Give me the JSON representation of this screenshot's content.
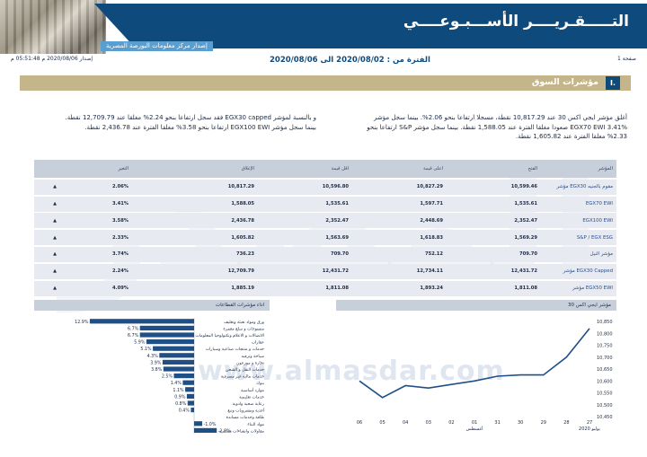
{
  "header": {
    "title": "التـــــقـريــــر الأســـبـوعــــي",
    "subtitle": "إصدار مركز معلومات البورصة المصرية"
  },
  "meta": {
    "page": "صفحة 1",
    "issue": "إصدار 2020/08/06 م 05:51:48 م",
    "period": "الفترة من : 2020/08/02 الى 2020/08/06"
  },
  "section": {
    "number": "I.",
    "title": "مؤشرات السوق"
  },
  "paragraphs": {
    "right": "أغلق مؤشر ايجي اكس 30 عند 10,817.29 نقطة، مسجلا ارتفاعا بنحو 2.06%. بينما سجل مؤشر EGX70 EWI 3.41% صعودا مغلقا الفترة عند 1,588.05 نقطة. بينما سجل مؤشر S&P ارتفاعا بنحو 2.33% مغلقا الفترة عند 1,605.82 نقطة.",
    "left": "و بالنسبة لمؤشر EGX30 capped فقد سجل ارتفاعا بنحو 2.24% مغلقا عند 12,709.79 نقطة. بينما سجل مؤشر EGX100 EWI ارتفاعا بنحو 3.58% مغلقا الفترة عند 2,436.78 نقطة."
  },
  "watermark": {
    "text": "www.almasdar.com"
  },
  "table": {
    "headers": {
      "name": "المؤشر",
      "open": "الفتح",
      "high": "اعلى قيمة",
      "low": "اقل قيمة",
      "close": "الإغلاق",
      "change": "التغير"
    },
    "rows": [
      {
        "name": "مؤشر EGX30 مقوم بالجنيه",
        "open": "10,599.46",
        "high": "10,827.29",
        "low": "10,596.80",
        "close": "10,817.29",
        "change": "2.06%",
        "arrow": "▲"
      },
      {
        "name": "EGX70 EWI",
        "open": "1,535.61",
        "high": "1,597.71",
        "low": "1,535.61",
        "close": "1,588.05",
        "change": "3.41%",
        "arrow": "▲"
      },
      {
        "name": "EGX100 EWI",
        "open": "2,352.47",
        "high": "2,448.69",
        "low": "2,352.47",
        "close": "2,436.78",
        "change": "3.58%",
        "arrow": "▲"
      },
      {
        "name": "S&P / EGX ESG",
        "open": "1,569.29",
        "high": "1,618.83",
        "low": "1,563.69",
        "close": "1,605.82",
        "change": "2.33%",
        "arrow": "▲"
      },
      {
        "name": "مؤشر النيل",
        "open": "709.70",
        "high": "752.12",
        "low": "709.70",
        "close": "736.23",
        "change": "3.74%",
        "arrow": "▲"
      },
      {
        "name": "مؤشر EGX30 Capped",
        "open": "12,431.72",
        "high": "12,734.11",
        "low": "12,431.72",
        "close": "12,709.79",
        "change": "2.24%",
        "arrow": "▲"
      },
      {
        "name": "مؤشر EGX50 EWI",
        "open": "1,811.08",
        "high": "1,893.24",
        "low": "1,811.08",
        "close": "1,885.19",
        "change": "4.09%",
        "arrow": "▲"
      }
    ]
  },
  "chart_data": [
    {
      "type": "bar",
      "title": "اداء مؤشرات القطاعات",
      "orientation": "horizontal",
      "categories": [
        "ورق ومواد تعبئة وتغليف",
        "منسوجات و سلع معمرة",
        "الاتصالات و الاعلام وتكنولوجيا المعلومات",
        "عقارات",
        "خدمات و منتجات صناعية وسيارات",
        "سياحة وترفيه",
        "تجارة و موزعون",
        "خدمات النقل و الشحن",
        "خدمات مالية غير مصرفية",
        "بنوك",
        "موارد أساسية",
        "خدمات تعليمية",
        "رعاية صحية وادوية",
        "أغذية ومشروبات وتبغ",
        "طاقة وخدمات مساندة",
        "مواد البناء",
        "مقاولات وانشاءات هندسية"
      ],
      "values": [
        12.9,
        6.7,
        6.7,
        5.9,
        5.1,
        4.3,
        3.9,
        3.8,
        2.5,
        1.4,
        1.1,
        0.9,
        0.8,
        0.4,
        0.0,
        -1.0,
        -2.8
      ],
      "value_labels": [
        "12.9%",
        "6.7%",
        "6.7%",
        "5.9%",
        "5.1%",
        "4.3%",
        "3.9%",
        "3.8%",
        "2.5%",
        "1.4%",
        "1.1%",
        "0.9%",
        "0.8%",
        "0.4%",
        "",
        "-1.0%",
        "-2.8%"
      ],
      "color": "#1f4f86"
    },
    {
      "type": "line",
      "title": "مؤشر ايجي اكس 30",
      "x": [
        "27",
        "28",
        "29",
        "30",
        "31",
        "01",
        "02",
        "03",
        "04",
        "05",
        "06"
      ],
      "x_sublabels": {
        "27": "يوليو 2020",
        "01": "أغسطس"
      },
      "y": [
        10820,
        10700,
        10625,
        10625,
        10620,
        10600,
        10585,
        10570,
        10580,
        10530,
        10600
      ],
      "yticks": [
        10450,
        10500,
        10550,
        10600,
        10650,
        10700,
        10750,
        10800,
        10850
      ],
      "ylim": [
        10450,
        10850
      ],
      "color": "#1f4f86"
    }
  ]
}
